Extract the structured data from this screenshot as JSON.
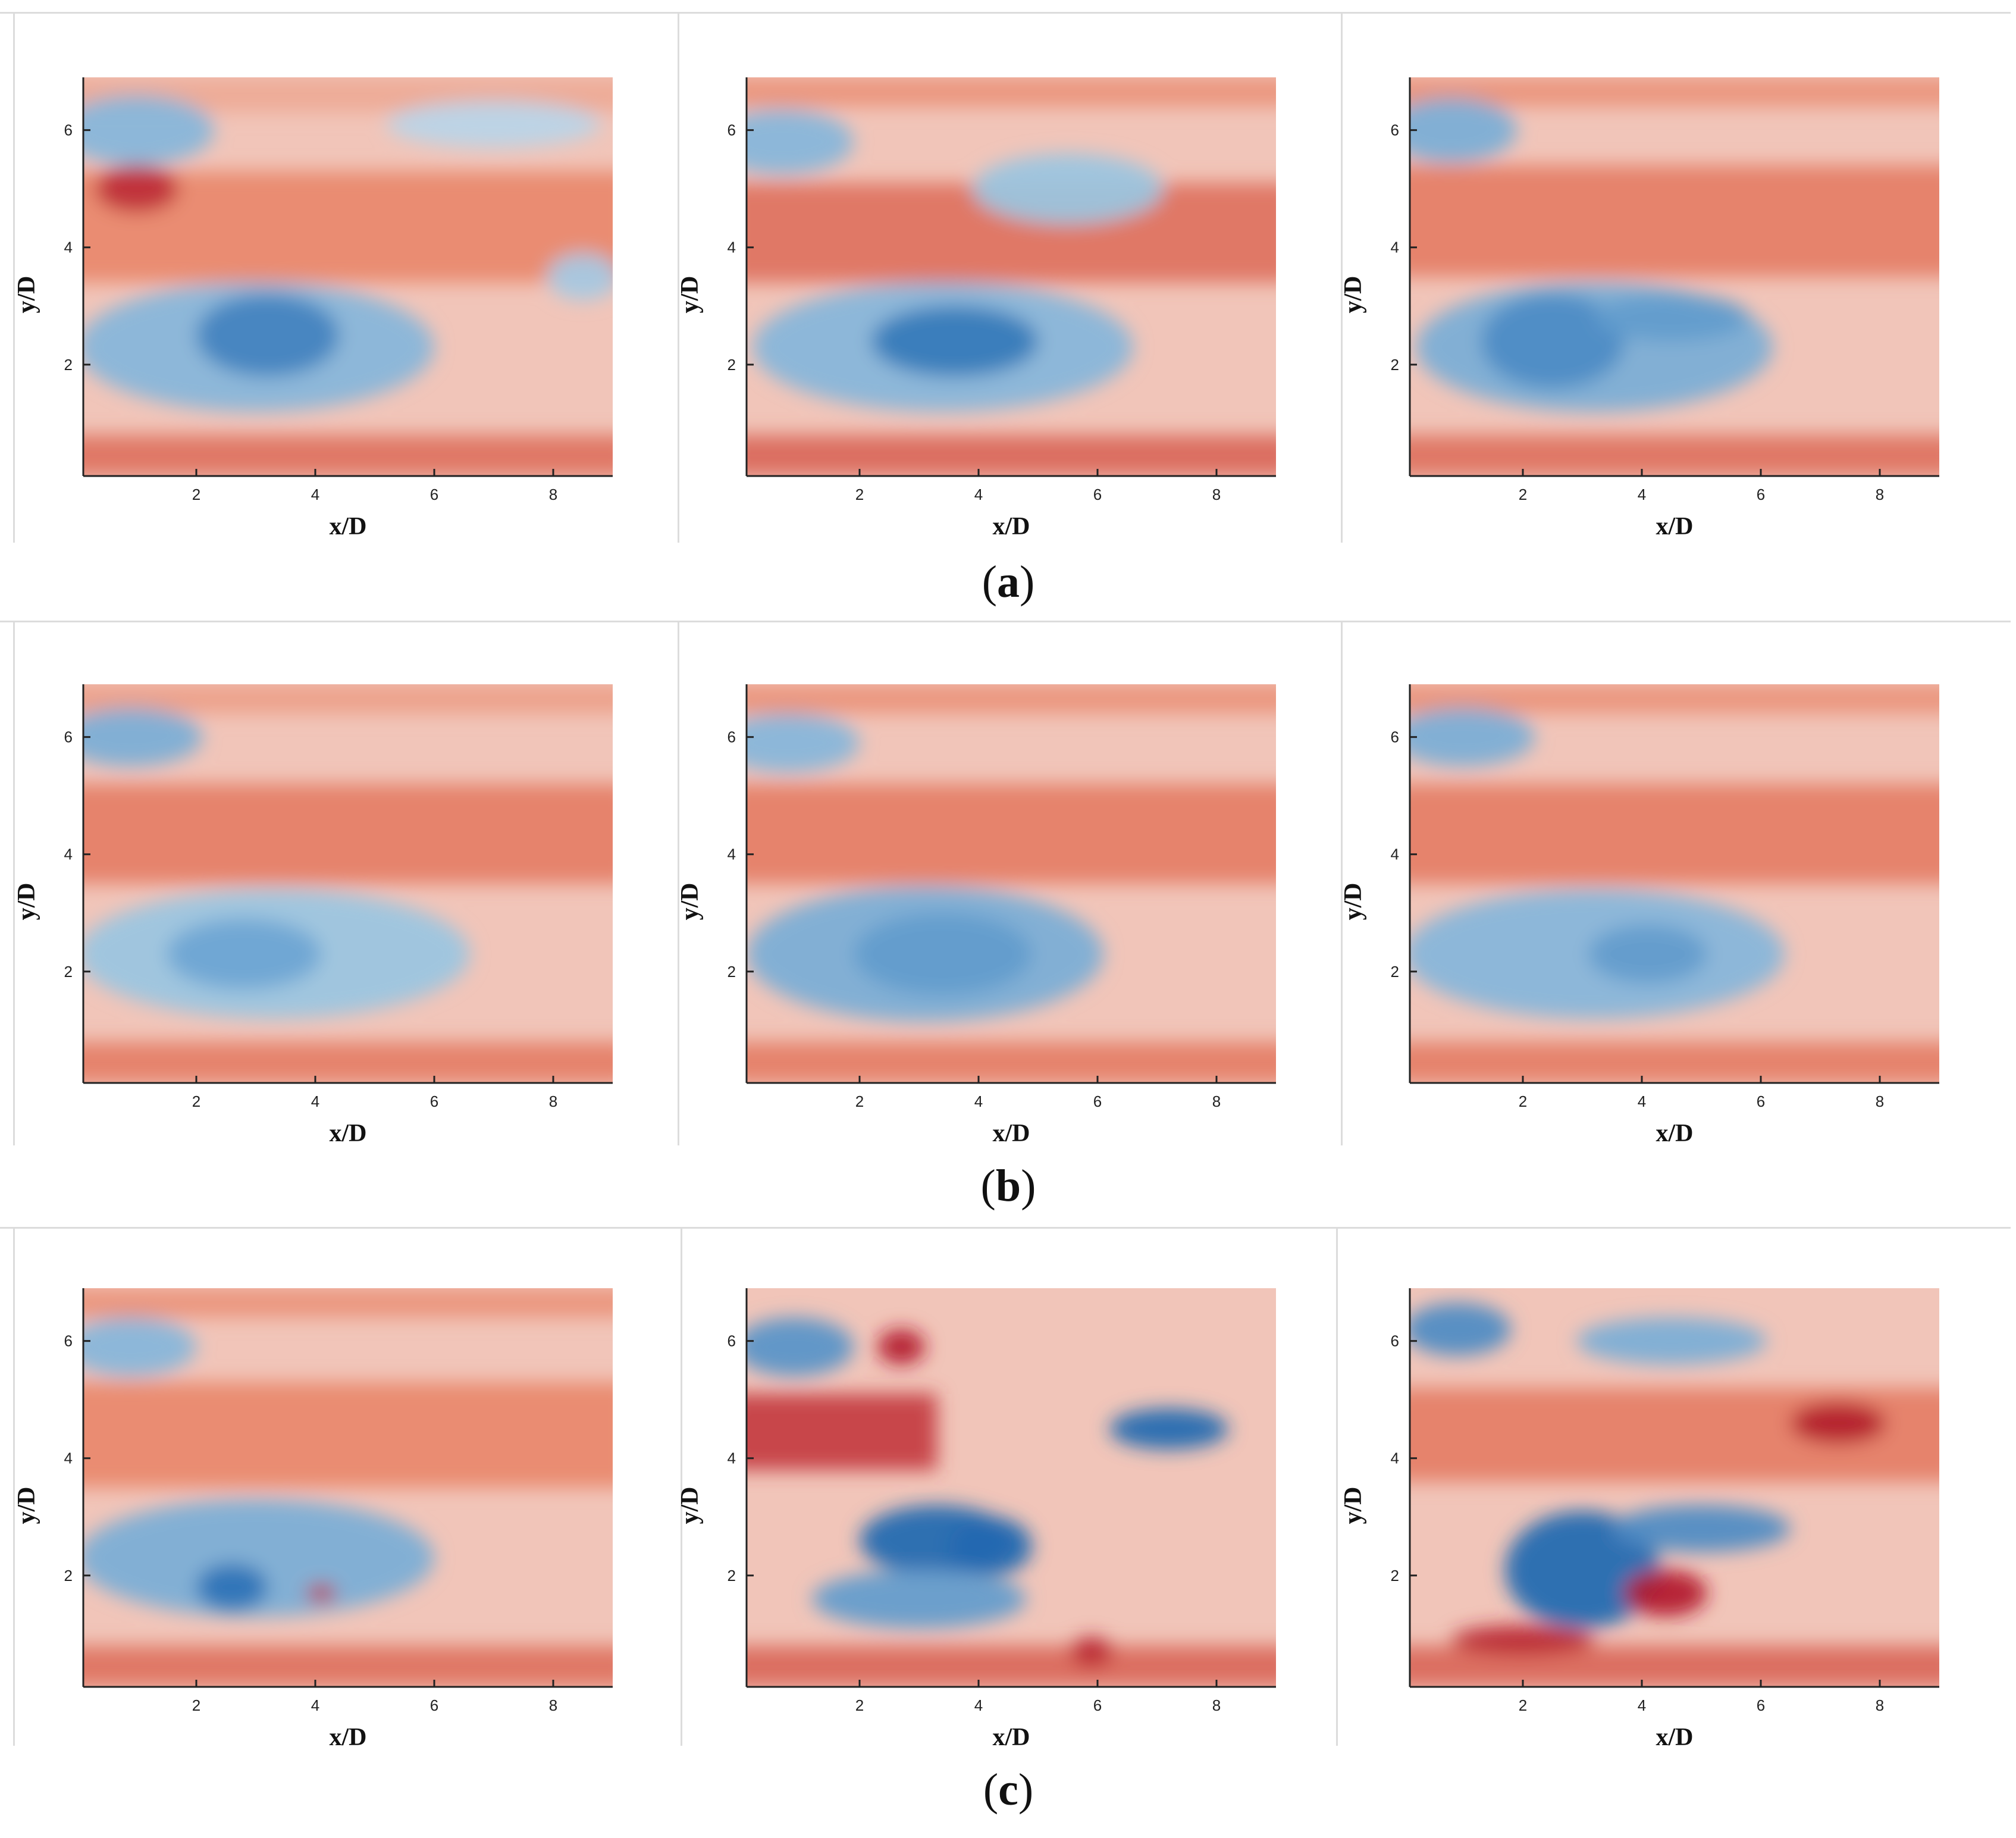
{
  "figure": {
    "row_labels": [
      {
        "open": "(",
        "letter": "a",
        "close": ")"
      },
      {
        "open": "(",
        "letter": "b",
        "close": ")"
      },
      {
        "open": "(",
        "letter": "c",
        "close": ")"
      }
    ]
  },
  "colors": {
    "high": "#b2182b",
    "mid_high": "#e9866a",
    "neutral": "#f7f7f7",
    "mid_low": "#8fbfe0",
    "low": "#1f68b1"
  },
  "chart_data": [
    {
      "type": "heatmap",
      "row": "a",
      "panel": 1,
      "xlabel": "x/D",
      "ylabel": "y/D",
      "xlim": [
        0.1,
        9
      ],
      "ylim": [
        0.1,
        6.9
      ],
      "xticks": [
        2,
        4,
        6,
        8
      ],
      "yticks": [
        2,
        4,
        6
      ],
      "features": [
        {
          "kind": "band",
          "y": [
            6.3,
            6.9
          ],
          "x": [
            0.1,
            9
          ],
          "value": 0.35
        },
        {
          "kind": "band",
          "y": [
            3.4,
            5.3
          ],
          "x": [
            0.1,
            9
          ],
          "value": 0.5
        },
        {
          "kind": "band",
          "y": [
            0.1,
            0.8
          ],
          "x": [
            0.1,
            9
          ],
          "value": 0.6
        },
        {
          "kind": "blob",
          "x": 1.0,
          "y": 6.0,
          "rx": 1.3,
          "ry": 0.6,
          "value": -0.55
        },
        {
          "kind": "blob",
          "x": 3.0,
          "y": 2.3,
          "rx": 3.0,
          "ry": 1.1,
          "value": -0.55
        },
        {
          "kind": "blob",
          "x": 3.2,
          "y": 2.5,
          "rx": 1.2,
          "ry": 0.7,
          "value": -0.85
        },
        {
          "kind": "blob",
          "x": 1.0,
          "y": 5.0,
          "rx": 0.7,
          "ry": 0.4,
          "value": 0.9
        },
        {
          "kind": "blob",
          "x": 7.0,
          "y": 6.1,
          "rx": 1.8,
          "ry": 0.4,
          "value": -0.3
        },
        {
          "kind": "blob",
          "x": 8.5,
          "y": 3.5,
          "rx": 0.6,
          "ry": 0.4,
          "value": -0.4
        }
      ]
    },
    {
      "type": "heatmap",
      "row": "a",
      "panel": 2,
      "xlabel": "x/D",
      "ylabel": "y/D",
      "xlim": [
        0.1,
        9
      ],
      "ylim": [
        0.1,
        6.9
      ],
      "xticks": [
        2,
        4,
        6,
        8
      ],
      "yticks": [
        2,
        4,
        6
      ],
      "features": [
        {
          "kind": "band",
          "y": [
            6.4,
            6.9
          ],
          "x": [
            0.1,
            9
          ],
          "value": 0.45
        },
        {
          "kind": "band",
          "y": [
            3.4,
            5.1
          ],
          "x": [
            0.1,
            9
          ],
          "value": 0.6
        },
        {
          "kind": "band",
          "y": [
            0.1,
            0.8
          ],
          "x": [
            0.1,
            9
          ],
          "value": 0.65
        },
        {
          "kind": "blob",
          "x": 0.7,
          "y": 5.8,
          "rx": 1.2,
          "ry": 0.55,
          "value": -0.55
        },
        {
          "kind": "blob",
          "x": 3.4,
          "y": 2.3,
          "rx": 3.2,
          "ry": 1.1,
          "value": -0.55
        },
        {
          "kind": "blob",
          "x": 3.6,
          "y": 2.4,
          "rx": 1.4,
          "ry": 0.6,
          "value": -0.9
        },
        {
          "kind": "blob",
          "x": 5.5,
          "y": 5.0,
          "rx": 1.6,
          "ry": 0.6,
          "value": -0.45
        }
      ]
    },
    {
      "type": "heatmap",
      "row": "a",
      "panel": 3,
      "xlabel": "x/D",
      "ylabel": "y/D",
      "xlim": [
        0.1,
        9
      ],
      "ylim": [
        0.1,
        6.9
      ],
      "xticks": [
        2,
        4,
        6,
        8
      ],
      "yticks": [
        2,
        4,
        6
      ],
      "features": [
        {
          "kind": "band",
          "y": [
            6.4,
            6.9
          ],
          "x": [
            0.1,
            9
          ],
          "value": 0.45
        },
        {
          "kind": "band",
          "y": [
            3.5,
            5.4
          ],
          "x": [
            0.1,
            9
          ],
          "value": 0.55
        },
        {
          "kind": "band",
          "y": [
            0.1,
            0.8
          ],
          "x": [
            0.1,
            9
          ],
          "value": 0.6
        },
        {
          "kind": "blob",
          "x": 0.8,
          "y": 6.0,
          "rx": 1.1,
          "ry": 0.55,
          "value": -0.6
        },
        {
          "kind": "blob",
          "x": 3.2,
          "y": 2.3,
          "rx": 3.0,
          "ry": 1.1,
          "value": -0.6
        },
        {
          "kind": "blob",
          "x": 2.5,
          "y": 2.4,
          "rx": 1.2,
          "ry": 0.8,
          "value": -0.8
        },
        {
          "kind": "blob",
          "x": 4.5,
          "y": 2.8,
          "rx": 1.3,
          "ry": 0.4,
          "value": -0.7
        }
      ]
    },
    {
      "type": "heatmap",
      "row": "b",
      "panel": 1,
      "xlabel": "x/D",
      "ylabel": "y/D",
      "xlim": [
        0.1,
        9
      ],
      "ylim": [
        0.1,
        6.9
      ],
      "xticks": [
        2,
        4,
        6,
        8
      ],
      "yticks": [
        2,
        4,
        6
      ],
      "features": [
        {
          "kind": "band",
          "y": [
            6.4,
            6.9
          ],
          "x": [
            0.1,
            9
          ],
          "value": 0.4
        },
        {
          "kind": "band",
          "y": [
            3.5,
            5.2
          ],
          "x": [
            0.1,
            9
          ],
          "value": 0.55
        },
        {
          "kind": "band",
          "y": [
            0.1,
            0.8
          ],
          "x": [
            0.1,
            9
          ],
          "value": 0.55
        },
        {
          "kind": "blob",
          "x": 0.9,
          "y": 6.0,
          "rx": 1.2,
          "ry": 0.5,
          "value": -0.6
        },
        {
          "kind": "blob",
          "x": 3.3,
          "y": 2.3,
          "rx": 3.3,
          "ry": 1.1,
          "value": -0.45
        },
        {
          "kind": "blob",
          "x": 2.8,
          "y": 2.3,
          "rx": 1.3,
          "ry": 0.6,
          "value": -0.65
        }
      ]
    },
    {
      "type": "heatmap",
      "row": "b",
      "panel": 2,
      "xlabel": "x/D",
      "ylabel": "y/D",
      "xlim": [
        0.1,
        9
      ],
      "ylim": [
        0.1,
        6.9
      ],
      "xticks": [
        2,
        4,
        6,
        8
      ],
      "yticks": [
        2,
        4,
        6
      ],
      "features": [
        {
          "kind": "band",
          "y": [
            6.4,
            6.9
          ],
          "x": [
            0.1,
            9
          ],
          "value": 0.45
        },
        {
          "kind": "band",
          "y": [
            3.5,
            5.2
          ],
          "x": [
            0.1,
            9
          ],
          "value": 0.55
        },
        {
          "kind": "band",
          "y": [
            0.1,
            0.8
          ],
          "x": [
            0.1,
            9
          ],
          "value": 0.55
        },
        {
          "kind": "blob",
          "x": 0.8,
          "y": 5.9,
          "rx": 1.2,
          "ry": 0.5,
          "value": -0.55
        },
        {
          "kind": "blob",
          "x": 3.1,
          "y": 2.3,
          "rx": 3.0,
          "ry": 1.15,
          "value": -0.6
        },
        {
          "kind": "blob",
          "x": 3.4,
          "y": 2.3,
          "rx": 1.5,
          "ry": 0.7,
          "value": -0.7
        }
      ]
    },
    {
      "type": "heatmap",
      "row": "b",
      "panel": 3,
      "xlabel": "x/D",
      "ylabel": "y/D",
      "xlim": [
        0.1,
        9
      ],
      "ylim": [
        0.1,
        6.9
      ],
      "xticks": [
        2,
        4,
        6,
        8
      ],
      "yticks": [
        2,
        4,
        6
      ],
      "features": [
        {
          "kind": "band",
          "y": [
            6.4,
            6.9
          ],
          "x": [
            0.1,
            9
          ],
          "value": 0.45
        },
        {
          "kind": "band",
          "y": [
            3.5,
            5.2
          ],
          "x": [
            0.1,
            9
          ],
          "value": 0.55
        },
        {
          "kind": "band",
          "y": [
            0.1,
            0.8
          ],
          "x": [
            0.1,
            9
          ],
          "value": 0.55
        },
        {
          "kind": "blob",
          "x": 1.0,
          "y": 6.0,
          "rx": 1.2,
          "ry": 0.5,
          "value": -0.6
        },
        {
          "kind": "blob",
          "x": 3.2,
          "y": 2.3,
          "rx": 3.2,
          "ry": 1.1,
          "value": -0.55
        },
        {
          "kind": "blob",
          "x": 4.1,
          "y": 2.3,
          "rx": 1.0,
          "ry": 0.5,
          "value": -0.7
        }
      ]
    },
    {
      "type": "heatmap",
      "row": "c",
      "panel": 1,
      "xlabel": "x/D",
      "ylabel": "y/D",
      "xlim": [
        0.1,
        9
      ],
      "ylim": [
        0.1,
        6.9
      ],
      "xticks": [
        2,
        4,
        6,
        8
      ],
      "yticks": [
        2,
        4,
        6
      ],
      "features": [
        {
          "kind": "band",
          "y": [
            6.4,
            6.9
          ],
          "x": [
            0.1,
            9
          ],
          "value": 0.45
        },
        {
          "kind": "band",
          "y": [
            3.5,
            5.3
          ],
          "x": [
            0.1,
            9
          ],
          "value": 0.5
        },
        {
          "kind": "band",
          "y": [
            0.1,
            0.8
          ],
          "x": [
            0.1,
            9
          ],
          "value": 0.6
        },
        {
          "kind": "blob",
          "x": 0.9,
          "y": 5.9,
          "rx": 1.1,
          "ry": 0.5,
          "value": -0.55
        },
        {
          "kind": "blob",
          "x": 3.0,
          "y": 2.3,
          "rx": 3.0,
          "ry": 1.0,
          "value": -0.6
        },
        {
          "kind": "blob",
          "x": 2.6,
          "y": 1.8,
          "rx": 0.6,
          "ry": 0.4,
          "value": -0.95
        },
        {
          "kind": "blob",
          "x": 4.1,
          "y": 1.7,
          "rx": 0.25,
          "ry": 0.15,
          "value": 0.9
        }
      ]
    },
    {
      "type": "heatmap",
      "row": "c",
      "panel": 2,
      "xlabel": "x/D",
      "ylabel": "y/D",
      "xlim": [
        0.1,
        9
      ],
      "ylim": [
        0.1,
        6.9
      ],
      "xticks": [
        2,
        4,
        6,
        8
      ],
      "yticks": [
        2,
        4,
        6
      ],
      "features": [
        {
          "kind": "band",
          "y": [
            3.8,
            5.1
          ],
          "x": [
            0.1,
            3
          ],
          "value": 0.85
        },
        {
          "kind": "band",
          "y": [
            0.1,
            0.8
          ],
          "x": [
            0.1,
            9
          ],
          "value": 0.65
        },
        {
          "kind": "blob",
          "x": 0.9,
          "y": 5.9,
          "rx": 1.0,
          "ry": 0.5,
          "value": -0.75
        },
        {
          "kind": "blob",
          "x": 3.3,
          "y": 2.6,
          "rx": 1.3,
          "ry": 0.6,
          "value": -1.0
        },
        {
          "kind": "blob",
          "x": 4.2,
          "y": 2.5,
          "rx": 0.7,
          "ry": 0.5,
          "value": -1.0
        },
        {
          "kind": "blob",
          "x": 7.2,
          "y": 4.5,
          "rx": 1.0,
          "ry": 0.35,
          "value": -1.0
        },
        {
          "kind": "blob",
          "x": 2.7,
          "y": 5.9,
          "rx": 0.4,
          "ry": 0.3,
          "value": 1.0
        },
        {
          "kind": "blob",
          "x": 5.9,
          "y": 0.7,
          "rx": 0.35,
          "ry": 0.25,
          "value": 0.95
        },
        {
          "kind": "blob",
          "x": 3.0,
          "y": 1.6,
          "rx": 1.8,
          "ry": 0.5,
          "value": -0.7
        }
      ]
    },
    {
      "type": "heatmap",
      "row": "c",
      "panel": 3,
      "xlabel": "x/D",
      "ylabel": "y/D",
      "xlim": [
        0.1,
        9
      ],
      "ylim": [
        0.1,
        6.9
      ],
      "xticks": [
        2,
        4,
        6,
        8
      ],
      "yticks": [
        2,
        4,
        6
      ],
      "features": [
        {
          "kind": "band",
          "y": [
            3.6,
            5.2
          ],
          "x": [
            0.1,
            9
          ],
          "value": 0.55
        },
        {
          "kind": "band",
          "y": [
            0.1,
            0.8
          ],
          "x": [
            0.1,
            9
          ],
          "value": 0.65
        },
        {
          "kind": "blob",
          "x": 0.9,
          "y": 6.2,
          "rx": 0.9,
          "ry": 0.45,
          "value": -0.8
        },
        {
          "kind": "blob",
          "x": 4.5,
          "y": 6.0,
          "rx": 1.6,
          "ry": 0.4,
          "value": -0.6
        },
        {
          "kind": "blob",
          "x": 3.0,
          "y": 2.1,
          "rx": 1.3,
          "ry": 1.0,
          "value": -1.0
        },
        {
          "kind": "blob",
          "x": 5.0,
          "y": 2.8,
          "rx": 1.5,
          "ry": 0.4,
          "value": -0.8
        },
        {
          "kind": "blob",
          "x": 4.4,
          "y": 1.7,
          "rx": 0.7,
          "ry": 0.4,
          "value": 1.0
        },
        {
          "kind": "blob",
          "x": 7.3,
          "y": 4.6,
          "rx": 0.8,
          "ry": 0.35,
          "value": 1.0
        },
        {
          "kind": "blob",
          "x": 2.0,
          "y": 0.9,
          "rx": 1.2,
          "ry": 0.25,
          "value": 0.95
        }
      ]
    }
  ]
}
